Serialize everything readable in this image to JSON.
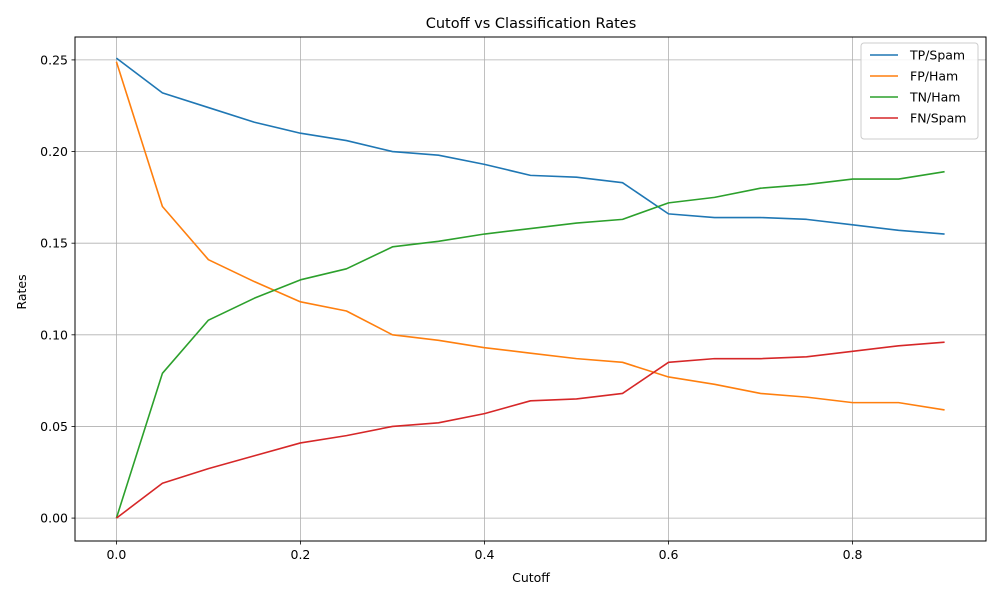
{
  "chart_data": {
    "type": "line",
    "title": "Cutoff vs Classification Rates",
    "xlabel": "Cutoff",
    "ylabel": "Rates",
    "xlim": [
      -0.045,
      0.945
    ],
    "ylim": [
      -0.0125,
      0.2625
    ],
    "xticks": [
      0.0,
      0.2,
      0.4,
      0.6,
      0.8
    ],
    "xtick_labels": [
      "0.0",
      "0.2",
      "0.4",
      "0.6",
      "0.8"
    ],
    "yticks": [
      0.0,
      0.05,
      0.1,
      0.15,
      0.2,
      0.25
    ],
    "ytick_labels": [
      "0.00",
      "0.05",
      "0.10",
      "0.15",
      "0.20",
      "0.25"
    ],
    "grid": true,
    "legend_position": "top-right",
    "x": [
      0.0,
      0.05,
      0.1,
      0.15,
      0.2,
      0.25,
      0.3,
      0.35,
      0.4,
      0.45,
      0.5,
      0.55,
      0.6,
      0.65,
      0.7,
      0.75,
      0.8,
      0.85,
      0.9
    ],
    "series": [
      {
        "name": "TP/Spam",
        "color": "#1f77b4",
        "values": [
          0.251,
          0.232,
          0.224,
          0.216,
          0.21,
          0.206,
          0.2,
          0.198,
          0.193,
          0.187,
          0.186,
          0.183,
          0.166,
          0.164,
          0.164,
          0.163,
          0.16,
          0.157,
          0.155
        ]
      },
      {
        "name": "FP/Ham",
        "color": "#ff7f0e",
        "values": [
          0.249,
          0.17,
          0.141,
          0.129,
          0.118,
          0.113,
          0.1,
          0.097,
          0.093,
          0.09,
          0.087,
          0.085,
          0.077,
          0.073,
          0.068,
          0.066,
          0.063,
          0.063,
          0.059
        ]
      },
      {
        "name": "TN/Ham",
        "color": "#2ca02c",
        "values": [
          0.0,
          0.079,
          0.108,
          0.12,
          0.13,
          0.136,
          0.148,
          0.151,
          0.155,
          0.158,
          0.161,
          0.163,
          0.172,
          0.175,
          0.18,
          0.182,
          0.185,
          0.185,
          0.189
        ]
      },
      {
        "name": "FN/Spam",
        "color": "#d62728",
        "values": [
          0.0,
          0.019,
          0.027,
          0.034,
          0.041,
          0.045,
          0.05,
          0.052,
          0.057,
          0.064,
          0.065,
          0.068,
          0.085,
          0.087,
          0.087,
          0.088,
          0.091,
          0.094,
          0.096
        ]
      }
    ]
  }
}
